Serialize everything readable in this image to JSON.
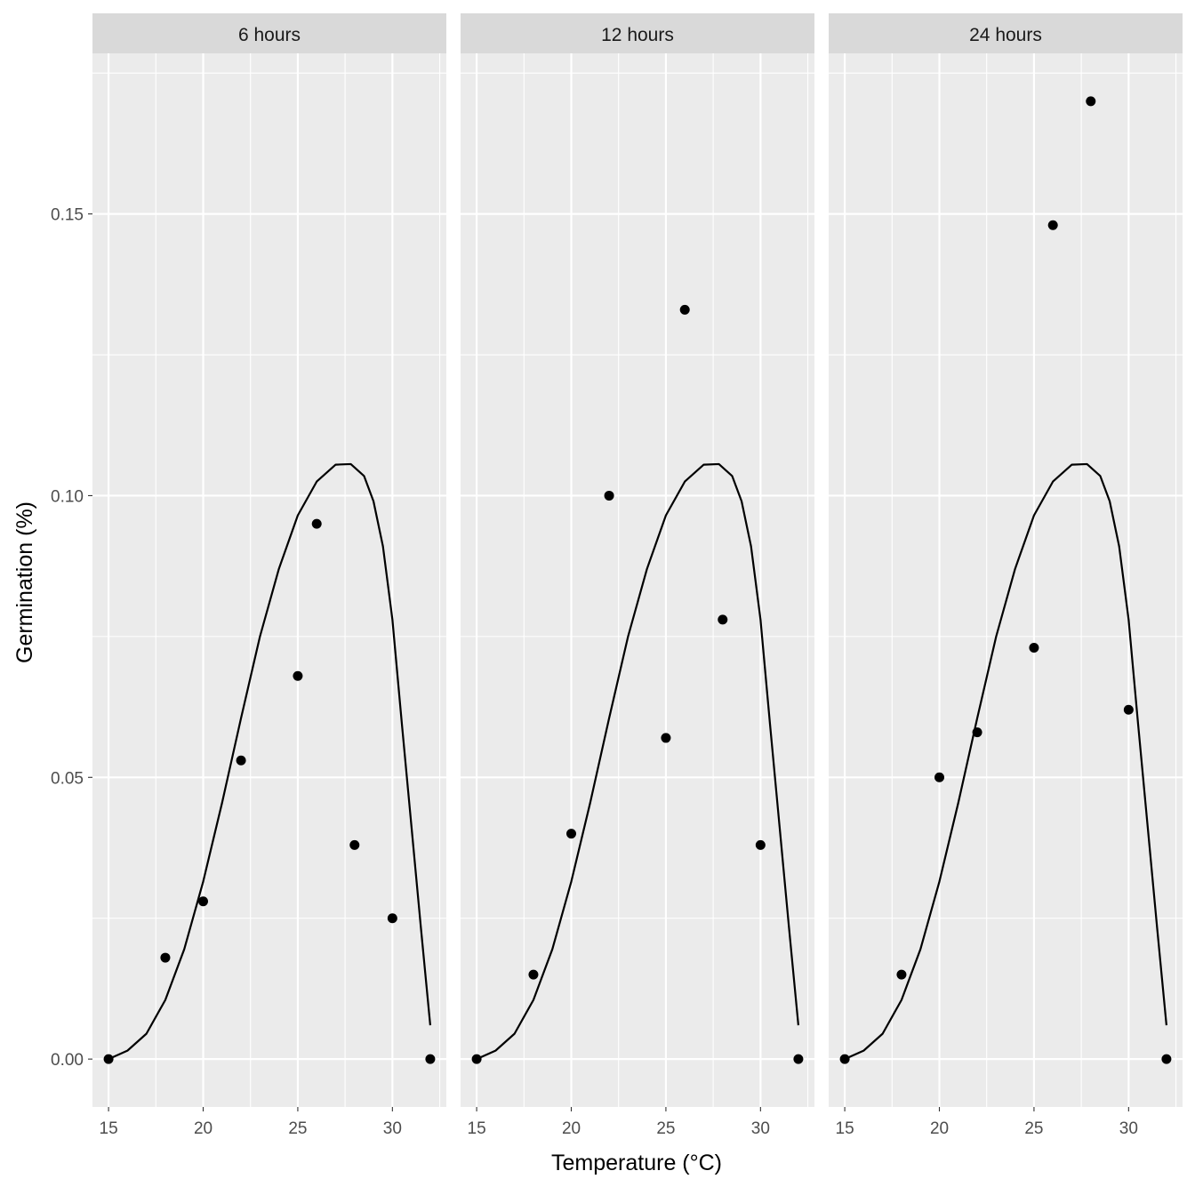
{
  "chart_data": {
    "type": "scatter",
    "xlabel": "Temperature (°C)",
    "ylabel": "Germination (%)",
    "xlim": [
      14.15,
      32.85
    ],
    "ylim": [
      -0.0085,
      0.1785
    ],
    "x_ticks": [
      15,
      20,
      25,
      30
    ],
    "x_tick_labels": [
      "15",
      "20",
      "25",
      "30"
    ],
    "y_ticks": [
      0,
      0.05,
      0.1,
      0.15
    ],
    "y_tick_labels": [
      "0.00",
      "0.05",
      "0.10",
      "0.15"
    ],
    "grid": true,
    "legend": "none",
    "colors": {
      "panel_bg": "#ebebeb",
      "strip_bg": "#d9d9d9",
      "grid": "#ffffff",
      "points": "#000000",
      "curve": "#000000"
    },
    "fitted_curve": {
      "x": [
        15,
        16,
        17,
        18,
        19,
        20,
        21,
        22,
        23,
        24,
        25,
        26,
        27,
        27.8,
        28.5,
        29,
        29.5,
        30,
        30.5,
        31,
        31.5,
        32
      ],
      "y": [
        0,
        0.0015,
        0.0045,
        0.0105,
        0.0195,
        0.0315,
        0.0455,
        0.0605,
        0.075,
        0.087,
        0.0965,
        0.1025,
        0.1055,
        0.1056,
        0.1035,
        0.099,
        0.091,
        0.078,
        0.0595,
        0.0415,
        0.0235,
        0.006
      ]
    },
    "panels": [
      {
        "label": "6 hours",
        "points": {
          "x": [
            15,
            18,
            20,
            22,
            25,
            26,
            28,
            30,
            32
          ],
          "y": [
            0,
            0.018,
            0.028,
            0.053,
            0.068,
            0.095,
            0.038,
            0.025,
            0
          ]
        }
      },
      {
        "label": "12 hours",
        "points": {
          "x": [
            15,
            18,
            20,
            22,
            25,
            26,
            28,
            30,
            32
          ],
          "y": [
            0,
            0.015,
            0.04,
            0.1,
            0.057,
            0.133,
            0.078,
            0.038,
            0
          ]
        }
      },
      {
        "label": "24 hours",
        "points": {
          "x": [
            15,
            18,
            20,
            22,
            25,
            26,
            28,
            30,
            32
          ],
          "y": [
            0,
            0.015,
            0.05,
            0.058,
            0.073,
            0.148,
            0.17,
            0.062,
            0
          ]
        }
      }
    ]
  }
}
